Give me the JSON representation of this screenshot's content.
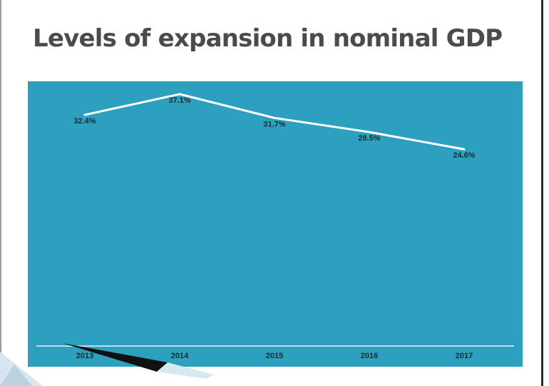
{
  "slide": {
    "title": "Levels of expansion in nominal GDP"
  },
  "colors": {
    "panel": "#2da0c0",
    "line": "#ffffff",
    "title": "#4b4b4b"
  },
  "chart_data": {
    "type": "line",
    "title": "Levels of expansion in nominal GDP",
    "xlabel": "",
    "ylabel": "",
    "categories": [
      "2013",
      "2014",
      "2015",
      "2016",
      "2017"
    ],
    "series": [
      {
        "values": [
          32.4,
          37.1,
          31.7,
          28.5,
          24.6
        ],
        "labels": [
          "32.4%",
          "37.1%",
          "31.7%",
          "28.5%",
          "24.6%"
        ]
      }
    ],
    "unit": "%",
    "grid": false,
    "legend": "none",
    "ylim": [
      -20,
      40
    ]
  }
}
